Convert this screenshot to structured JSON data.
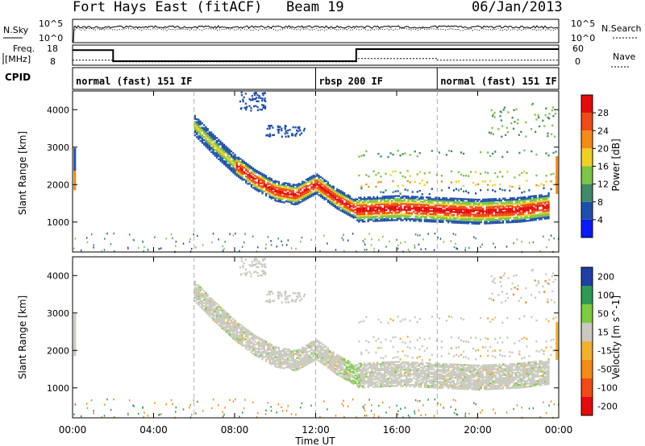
{
  "header": {
    "station": "Fort Hays East (fitACF)",
    "beam": "Beam 19",
    "date": "06/Jan/2013"
  },
  "top_panels": {
    "nsky_label": "N.Sky",
    "nsearch_label": "N.Search",
    "nsky_ticks": [
      "10^5",
      "10^0"
    ],
    "nsearch_ticks": [
      "10^5",
      "10^0"
    ],
    "freq_label_1": "Freq.",
    "freq_label_2": "[MHz]",
    "freq_ticks": [
      "18",
      "8"
    ],
    "nave_ticks": [
      "60",
      "0"
    ],
    "nave_label": "Nave",
    "cpid_label": "CPID",
    "cpid_segments": [
      {
        "label": "normal (fast) 151 IF",
        "start_hour": 0
      },
      {
        "label": "rbsp 200 IF",
        "start_hour": 12
      },
      {
        "label": "normal (fast) 151 IF",
        "start_hour": 18
      }
    ],
    "freq_steps": [
      {
        "from": 0,
        "to": 2,
        "freq": 15.5
      },
      {
        "from": 2,
        "to": 14,
        "freq": 10
      },
      {
        "from": 14,
        "to": 24,
        "freq": 16
      }
    ],
    "nave_steps": [
      {
        "from": 0,
        "to": 2,
        "nave": 15
      },
      {
        "from": 2,
        "to": 14,
        "nave": 10
      },
      {
        "from": 14,
        "to": 18,
        "nave": 20
      },
      {
        "from": 18,
        "to": 24,
        "nave": 15
      }
    ]
  },
  "chart_data": [
    {
      "type": "heatmap",
      "ylabel": "Slant Range [km]",
      "xlabel": "Time UT",
      "x_ticks": [
        "00:00",
        "04:00",
        "08:00",
        "12:00",
        "16:00",
        "20:00",
        "00:00"
      ],
      "xlim_hours": [
        0,
        24
      ],
      "ylim_km": [
        200,
        4500
      ],
      "y_ticks": [
        1000,
        2000,
        3000,
        4000
      ],
      "colorbar": {
        "label": "Power [dB]",
        "ticks": [
          "4",
          "8",
          "12",
          "16",
          "20",
          "24",
          "28"
        ],
        "colors": [
          "#0a1aff",
          "#1f4fae",
          "#3f8a68",
          "#7cc444",
          "#f2d023",
          "#f58a16",
          "#f24a14",
          "#e60a0a"
        ]
      },
      "band_centre_km": [
        [
          6,
          3600
        ],
        [
          7,
          3050
        ],
        [
          8,
          2550
        ],
        [
          9,
          2150
        ],
        [
          10,
          1850
        ],
        [
          11,
          1750
        ],
        [
          12,
          2050
        ],
        [
          13,
          1650
        ],
        [
          14,
          1350
        ],
        [
          16,
          1400
        ],
        [
          18,
          1350
        ],
        [
          20,
          1300
        ],
        [
          22,
          1350
        ],
        [
          23.5,
          1450
        ]
      ]
    },
    {
      "type": "heatmap",
      "ylabel": "Slant Range [km]",
      "xlabel": "Time UT",
      "colorbar": {
        "label": "Velocity [m s^-1]",
        "ticks": [
          "200",
          "100",
          "50",
          "15",
          "-15",
          "-50",
          "-100",
          "-200"
        ],
        "colors": [
          "#1f3fa8",
          "#2f9a52",
          "#7acd3c",
          "#c9c9bf",
          "#f2b02f",
          "#f58a16",
          "#f24a14",
          "#e60a0a"
        ]
      }
    }
  ]
}
